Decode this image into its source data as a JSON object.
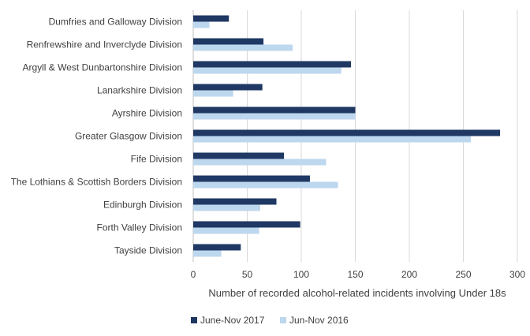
{
  "chart_data": {
    "type": "bar",
    "orientation": "horizontal",
    "categories": [
      "Dumfries and Galloway Division",
      "Renfrewshire and Inverclyde Division",
      "Argyll & West Dunbartonshire Division",
      "Lanarkshire Division",
      "Ayrshire Division",
      "Greater Glasgow Division",
      "Fife Division",
      "The Lothians & Scottish Borders Division",
      "Edinburgh Division",
      "Forth Valley Division",
      "Tayside Division"
    ],
    "series": [
      {
        "name": "June-Nov 2017",
        "color": "#1f3864",
        "values": [
          33,
          65,
          146,
          64,
          150,
          284,
          84,
          108,
          77,
          99,
          44
        ]
      },
      {
        "name": "Jun-Nov 2016",
        "color": "#bdd7ee",
        "values": [
          15,
          92,
          137,
          37,
          150,
          257,
          123,
          134,
          62,
          61,
          26
        ]
      }
    ],
    "xlabel": "Number of recorded alcohol-related incidents involving Under 18s",
    "xlim": [
      0,
      300
    ],
    "xticks": [
      0,
      50,
      100,
      150,
      200,
      250,
      300
    ],
    "grid": "vertical",
    "legend_position": "bottom"
  }
}
